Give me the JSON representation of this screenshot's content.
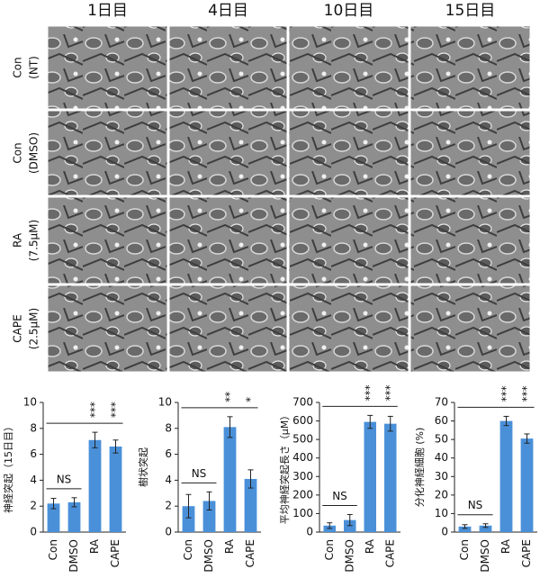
{
  "micrographs": {
    "columns": [
      "1日目",
      "4日目",
      "10日目",
      "15日目"
    ],
    "rows": [
      [
        "Con",
        "(NT)"
      ],
      [
        "Con",
        "(DMSO)"
      ],
      [
        "RA",
        "(7.5μM)"
      ],
      [
        "CAPE",
        "(2.5μM)"
      ]
    ]
  },
  "chart_data": [
    {
      "type": "bar",
      "y_label": "神経突起（15日目）",
      "categories": [
        "Con",
        "DMSO",
        "RA",
        "CAPE"
      ],
      "values": [
        2.2,
        2.3,
        7.1,
        6.6
      ],
      "errors": [
        0.4,
        0.35,
        0.6,
        0.5
      ],
      "color": "#4a90d9",
      "ylim": [
        0,
        10
      ],
      "yticks": [
        0,
        2,
        4,
        6,
        8,
        10
      ],
      "significance": [
        "NS",
        "***",
        "***"
      ]
    },
    {
      "type": "bar",
      "y_label": "樹状突起",
      "categories": [
        "Con",
        "DMSO",
        "RA",
        "CAPE"
      ],
      "values": [
        2.0,
        2.4,
        8.1,
        4.1
      ],
      "errors": [
        0.9,
        0.7,
        0.8,
        0.7
      ],
      "color": "#4a90d9",
      "ylim": [
        0,
        10
      ],
      "yticks": [
        0,
        2,
        4,
        6,
        8,
        10
      ],
      "significance": [
        "NS",
        "**",
        "*"
      ]
    },
    {
      "type": "bar",
      "y_label": "平均神経突起長さ（μM）",
      "categories": [
        "Con",
        "DMSO",
        "RA",
        "CAPE"
      ],
      "values": [
        35,
        65,
        595,
        585
      ],
      "errors": [
        15,
        30,
        35,
        40
      ],
      "color": "#4a90d9",
      "ylim": [
        0,
        700
      ],
      "yticks": [
        0,
        100,
        200,
        300,
        400,
        500,
        600,
        700
      ],
      "significance": [
        "NS",
        "***",
        "***"
      ]
    },
    {
      "type": "bar",
      "y_label": "分化神経細胞 (%)",
      "categories": [
        "Con",
        "DMSO",
        "RA",
        "CAPE"
      ],
      "values": [
        3,
        3.5,
        60,
        50.5
      ],
      "errors": [
        1,
        1,
        2.5,
        2.5
      ],
      "color": "#4a90d9",
      "ylim": [
        0,
        70
      ],
      "yticks": [
        0,
        10,
        20,
        30,
        40,
        50,
        60,
        70
      ],
      "significance": [
        "NS",
        "***",
        "***"
      ]
    }
  ]
}
